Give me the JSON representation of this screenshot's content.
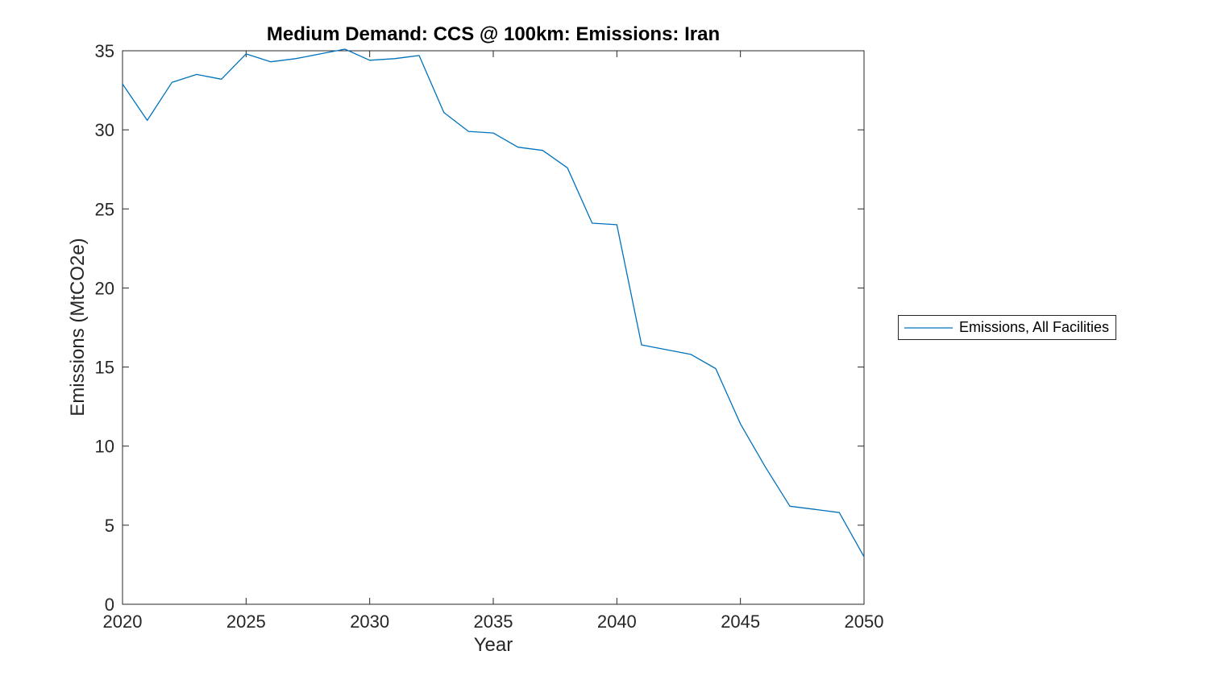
{
  "title": "Medium Demand: CCS @ 100km: Emissions: Iran",
  "axes": {
    "xlabel": "Year",
    "ylabel": "Emissions (MtCO2e)"
  },
  "legend": {
    "entries": [
      {
        "label": "Emissions, All Facilities",
        "color": "#0072BD"
      }
    ]
  },
  "colors": {
    "line": "#0072BD",
    "axis": "#262626",
    "tick_label": "#262626",
    "title": "#000000",
    "background": "#ffffff"
  },
  "chart_data": {
    "type": "line",
    "title": "Medium Demand: CCS @ 100km: Emissions: Iran",
    "xlabel": "Year",
    "ylabel": "Emissions (MtCO2e)",
    "xlim": [
      2020,
      2050
    ],
    "ylim": [
      0,
      35
    ],
    "x_ticks": [
      2020,
      2025,
      2030,
      2035,
      2040,
      2045,
      2050
    ],
    "y_ticks": [
      0,
      5,
      10,
      15,
      20,
      25,
      30,
      35
    ],
    "grid": false,
    "legend_position": "outside-right",
    "line_color": "#0072BD",
    "x": [
      2020,
      2021,
      2022,
      2023,
      2024,
      2025,
      2026,
      2027,
      2028,
      2029,
      2030,
      2031,
      2032,
      2033,
      2034,
      2035,
      2036,
      2037,
      2038,
      2039,
      2040,
      2041,
      2042,
      2043,
      2044,
      2045,
      2046,
      2047,
      2048,
      2049,
      2050
    ],
    "series": [
      {
        "name": "Emissions, All Facilities",
        "values": [
          32.9,
          30.6,
          33.0,
          33.5,
          33.2,
          34.8,
          34.3,
          34.5,
          34.8,
          35.1,
          34.4,
          34.5,
          34.7,
          31.1,
          29.9,
          29.8,
          28.9,
          28.7,
          27.6,
          24.1,
          24.0,
          16.4,
          16.1,
          15.8,
          14.9,
          11.4,
          8.7,
          6.2,
          6.0,
          5.8,
          3.0
        ]
      }
    ]
  }
}
